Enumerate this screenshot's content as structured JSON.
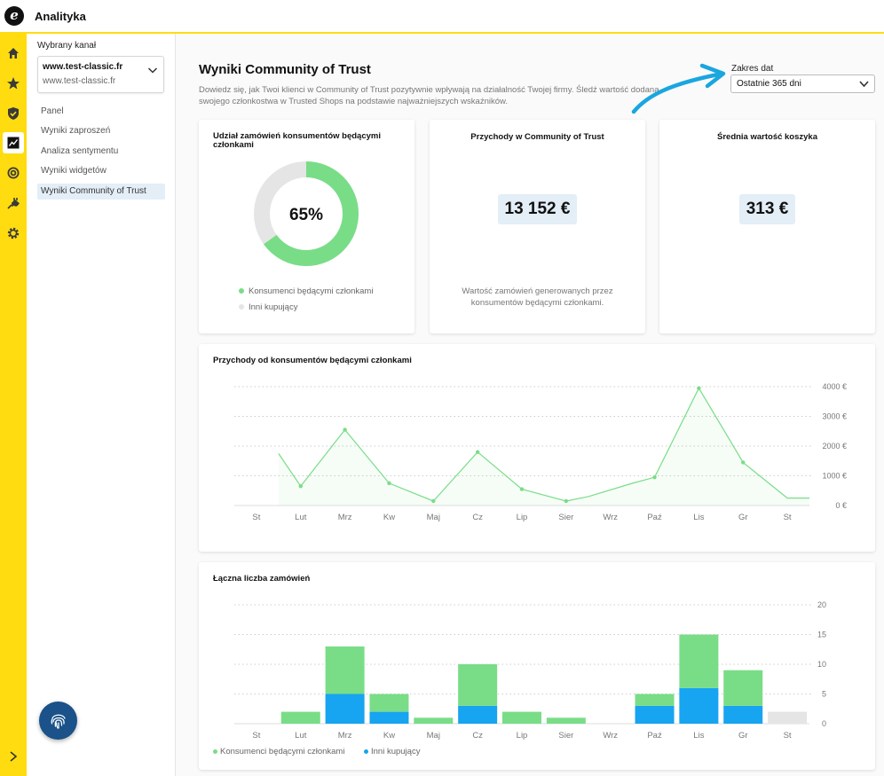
{
  "app": {
    "title": "Analityka",
    "logo_letter": "e"
  },
  "rail": {
    "icons": [
      "home-icon",
      "star-icon",
      "shield-icon",
      "analytics-icon",
      "coin-icon",
      "plug-icon",
      "gear-icon"
    ],
    "expand_icon": "chevron-right-icon"
  },
  "subnav": {
    "channel_label": "Wybrany kanał",
    "channel_main": "www.test-classic.fr",
    "channel_sub": "www.test-classic.fr",
    "items": [
      {
        "label": "Panel"
      },
      {
        "label": "Wyniki zaproszeń"
      },
      {
        "label": "Analiza sentymentu"
      },
      {
        "label": "Wyniki widgetów"
      },
      {
        "label": "Wyniki Community of Trust",
        "active": true
      }
    ]
  },
  "page": {
    "title": "Wyniki Community of Trust",
    "description": "Dowiedz się, jak Twoi klienci w Community of Trust pozytywnie wpływają na działalność Twojej firmy. Śledź wartość dodaną swojego członkostwa w Trusted Shops na podstawie najważniejszych wskaźników.",
    "range_label": "Zakres dat",
    "range_value": "Ostatnie 365 dni"
  },
  "cards": {
    "share": {
      "title": "Udział zamówień konsumentów będącymi członkami",
      "percent": 65,
      "percent_label": "65%",
      "legend": [
        "Konsumenci będącymi członkami",
        "Inni kupujący"
      ]
    },
    "revenue": {
      "title": "Przychody w Community of Trust",
      "value": "13 152 €",
      "note": "Wartość zamówień generowanych przez konsumentów będącymi członkami."
    },
    "basket": {
      "title": "Średnia wartość koszyka",
      "value": "313 €"
    }
  },
  "colors": {
    "green": "#79dd87",
    "blue": "#17a4f0",
    "grey": "#e5e5e5",
    "yellow": "#ffdc0f",
    "navy": "#1a5289"
  },
  "chart_data": [
    {
      "type": "line",
      "title": "Przychody od konsumentów będącymi członkami",
      "categories": [
        "St",
        "Lut",
        "Mrz",
        "Kw",
        "Maj",
        "Cz",
        "Lip",
        "Sier",
        "Wrz",
        "Paź",
        "Lis",
        "Gr",
        "St"
      ],
      "x": [
        0,
        0.5,
        1,
        2,
        3,
        4,
        5,
        6,
        7,
        7.5,
        8.5,
        9,
        10,
        11,
        12,
        12.5
      ],
      "values": [
        null,
        1750,
        650,
        2550,
        750,
        150,
        1800,
        550,
        150,
        300,
        750,
        950,
        3950,
        1450,
        250,
        250
      ],
      "ylim": [
        0,
        4000
      ],
      "yticks": [
        "0 €",
        "1000 €",
        "2000 €",
        "3000 €",
        "4000 €"
      ],
      "grid": true
    },
    {
      "type": "bar",
      "title": "Łączna liczba zamówień",
      "categories": [
        "St",
        "Lut",
        "Mrz",
        "Kw",
        "Maj",
        "Cz",
        "Lip",
        "Sier",
        "Wrz",
        "Paź",
        "Lis",
        "Gr",
        "St"
      ],
      "series": [
        {
          "name": "Konsumenci będącymi członkami",
          "values": [
            0,
            2,
            8,
            3,
            1,
            7,
            2,
            1,
            0,
            2,
            9,
            6,
            0
          ]
        },
        {
          "name": "Inni kupujący",
          "values": [
            0,
            0,
            5,
            2,
            0,
            3,
            0,
            0,
            0,
            3,
            6,
            3,
            0
          ]
        },
        {
          "name": "",
          "values": [
            0,
            0,
            0,
            0,
            0,
            0,
            0,
            0,
            0,
            0,
            0,
            0,
            2
          ]
        }
      ],
      "stacked": true,
      "ylim": [
        0,
        20
      ],
      "yticks": [
        "0",
        "5",
        "10",
        "15",
        "20"
      ],
      "legend": [
        "Konsumenci będącymi członkami",
        "Inni kupujący"
      ],
      "grid": true
    }
  ]
}
